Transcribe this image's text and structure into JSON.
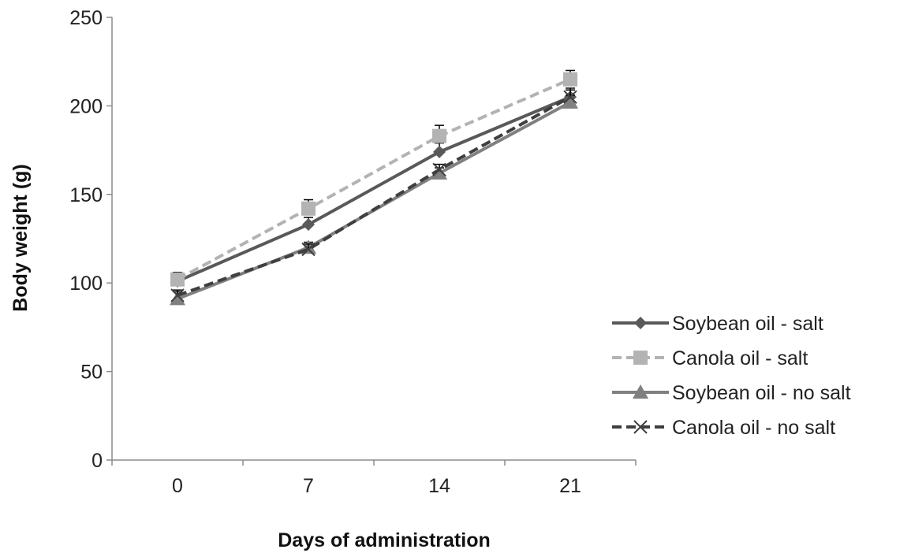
{
  "chart_data": {
    "type": "line",
    "title": "",
    "xlabel": "Days of administration",
    "ylabel": "Body weight (g)",
    "categories": [
      "0",
      "7",
      "14",
      "21"
    ],
    "ylim": [
      0,
      250
    ],
    "yticks": [
      "0",
      "50",
      "100",
      "150",
      "200",
      "250"
    ],
    "grid": false,
    "legend_position": "right",
    "series": [
      {
        "name": "Soybean oil - salt",
        "values": [
          101,
          133,
          174,
          205
        ],
        "errors": [
          4,
          4,
          5,
          5
        ],
        "color": "#595959",
        "dash": "solid",
        "marker": "diamond"
      },
      {
        "name": "Canola oil - salt",
        "values": [
          102,
          142,
          183,
          215
        ],
        "errors": [
          4,
          5,
          6,
          5
        ],
        "color": "#b3b3b3",
        "dash": "dashed",
        "marker": "square"
      },
      {
        "name": "Soybean oil - no salt",
        "values": [
          91,
          120,
          162,
          202
        ],
        "errors": [
          4,
          3,
          3,
          4
        ],
        "color": "#808080",
        "dash": "solid",
        "marker": "triangle"
      },
      {
        "name": "Canola oil - no salt",
        "values": [
          93,
          119,
          164,
          205
        ],
        "errors": [
          3,
          3,
          3,
          4
        ],
        "color": "#3f3f3f",
        "dash": "dashed",
        "marker": "x"
      }
    ]
  }
}
